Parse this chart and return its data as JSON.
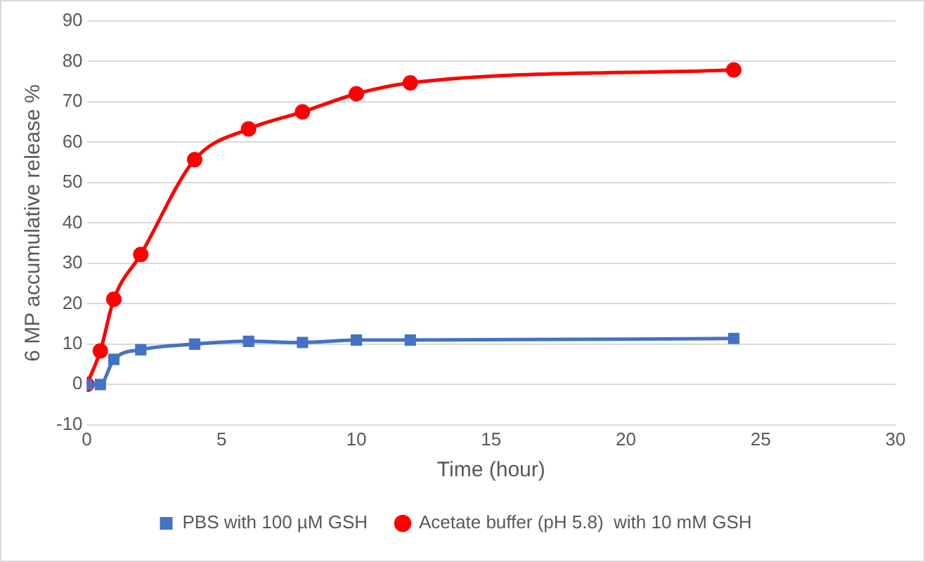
{
  "chart_data": {
    "type": "line",
    "xlabel": "Time (hour)",
    "ylabel": "6 MP accumulative release %",
    "xlim": [
      0,
      30
    ],
    "xticks": [
      0,
      5,
      10,
      15,
      20,
      25,
      30
    ],
    "ylim": [
      -10,
      90
    ],
    "yticks": [
      -10,
      0,
      10,
      20,
      30,
      40,
      50,
      60,
      70,
      80,
      90
    ],
    "grid": "y",
    "legend": "bottom",
    "x": [
      0,
      0.5,
      1,
      2,
      4,
      6,
      8,
      10,
      12,
      24
    ],
    "series": [
      {
        "name": "PBS with 100 µM GSH",
        "color": "#4472c4",
        "marker": "square",
        "values": [
          0,
          0,
          6.2,
          8.6,
          10,
          10.7,
          10.4,
          11,
          11,
          11.4
        ]
      },
      {
        "name": "Acetate buffer (pH 5.8)  with 10 mM GSH",
        "color": "#ff0000",
        "marker": "circle",
        "values": [
          0,
          8.3,
          21.1,
          32.2,
          55.7,
          63.3,
          67.5,
          72,
          74.7,
          77.9
        ]
      }
    ]
  }
}
